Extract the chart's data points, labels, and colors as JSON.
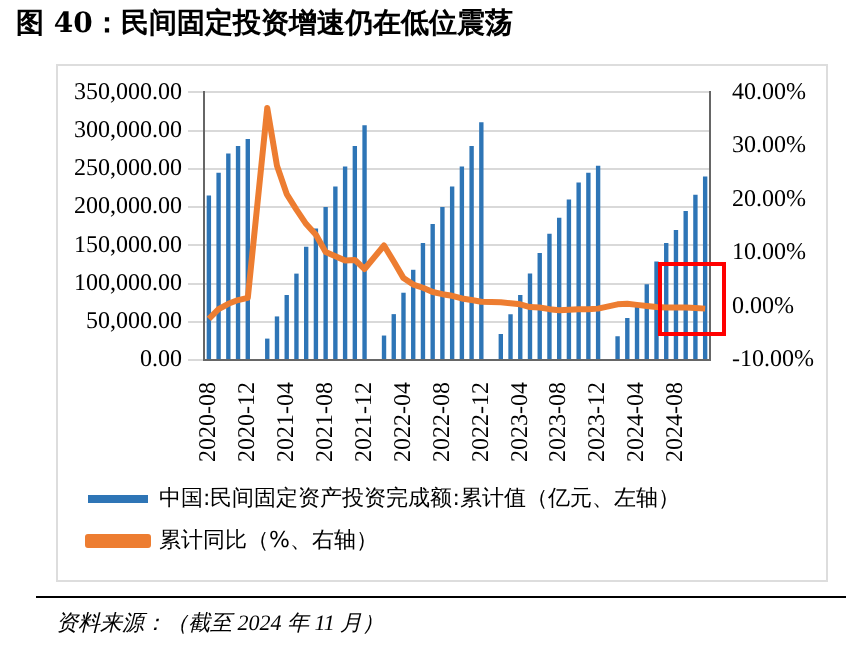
{
  "chart_data": {
    "type": "bar",
    "title": "图 40：民间固定投资增速仍在低位震荡",
    "categories": [
      "2020-08",
      null,
      null,
      null,
      "2020-12",
      null,
      null,
      null,
      "2021-04",
      null,
      null,
      null,
      "2021-08",
      null,
      null,
      null,
      "2021-12",
      null,
      null,
      null,
      "2022-04",
      null,
      null,
      null,
      "2022-08",
      null,
      null,
      null,
      "2022-12",
      null,
      null,
      null,
      "2023-04",
      null,
      null,
      null,
      "2023-08",
      null,
      null,
      null,
      "2023-12",
      null,
      null,
      null,
      "2024-04",
      null,
      null,
      null,
      "2024-08",
      null,
      null,
      null
    ],
    "series": [
      {
        "name": "中国:民间固定资产投资完成额:累计值（亿元、左轴）",
        "axis": "y",
        "color": "#2e75b6",
        "values": [
          215000,
          245000,
          270000,
          280000,
          289000,
          null,
          28000,
          57000,
          85000,
          113000,
          148000,
          172000,
          200000,
          227000,
          253000,
          280000,
          307000,
          null,
          32000,
          60000,
          88000,
          118000,
          153000,
          178000,
          200000,
          227000,
          253000,
          280000,
          311000,
          null,
          34000,
          60000,
          85000,
          113000,
          140000,
          165000,
          186000,
          210000,
          232000,
          245000,
          254000,
          null,
          31000,
          55000,
          72000,
          99000,
          129000,
          153000,
          170000,
          195000,
          216000,
          240000
        ]
      },
      {
        "name": "累计同比（%、右轴）",
        "type": "line",
        "axis": "y2",
        "color": "#ed7d31",
        "values": [
          -2.3,
          -0.5,
          0.5,
          1.2,
          1.6,
          null,
          37.1,
          26.3,
          21.0,
          18.1,
          15.4,
          13.4,
          10.2,
          9.4,
          8.6,
          8.7,
          7.0,
          null,
          11.4,
          8.4,
          5.3,
          4.1,
          3.5,
          2.7,
          2.3,
          2.0,
          1.5,
          1.2,
          0.9,
          null,
          0.8,
          0.6,
          0.4,
          -0.1,
          -0.2,
          -0.5,
          -0.7,
          -0.6,
          -0.5,
          -0.5,
          -0.4,
          null,
          0.4,
          0.5,
          0.3,
          0.1,
          -0.1,
          -0.2,
          -0.2,
          -0.2,
          -0.3,
          -0.4
        ]
      }
    ],
    "ylim": [
      0,
      350000
    ],
    "yticks": [
      {
        "value": 0,
        "label": "0.00"
      },
      {
        "value": 50000,
        "label": "50,000.00"
      },
      {
        "value": 100000,
        "label": "100,000.00"
      },
      {
        "value": 150000,
        "label": "150,000.00"
      },
      {
        "value": 200000,
        "label": "200,000.00"
      },
      {
        "value": 250000,
        "label": "250,000.00"
      },
      {
        "value": 300000,
        "label": "300,000.00"
      },
      {
        "value": 350000,
        "label": "350,000.00"
      }
    ],
    "y2lim": [
      -10,
      40
    ],
    "y2ticks": [
      {
        "value": -10,
        "label": "-10.00%"
      },
      {
        "value": 0,
        "label": "0.00%"
      },
      {
        "value": 10,
        "label": "10.00%"
      },
      {
        "value": 20,
        "label": "20.00%"
      },
      {
        "value": 30,
        "label": "30.00%"
      },
      {
        "value": 40,
        "label": "40.00%"
      }
    ],
    "grid": "y",
    "legend": "bottom",
    "annotations": [
      "资料来源：（截至 2024 年 11 月）"
    ]
  }
}
